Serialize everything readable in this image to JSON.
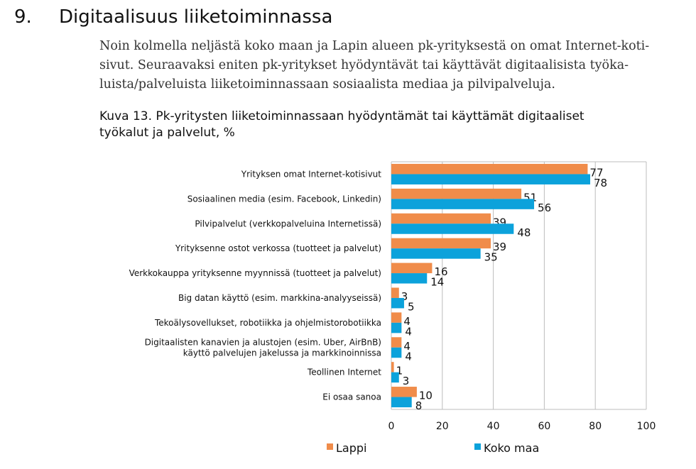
{
  "section": {
    "number": "9.",
    "title": "Digitaalisuus liiketoiminnassa"
  },
  "paragraph_lines": [
    "Noin kolmella neljästä koko maan ja Lapin alueen pk-yrityksestä on omat Internet-koti-",
    "sivut. Seuraavaksi eniten pk-yritykset hyödyntävät tai käyttävät digitaalisista työka-",
    "luista/palveluista liiketoiminnassaan sosiaalista mediaa ja pilvipalveluja."
  ],
  "caption_lines": [
    "Kuva 13. Pk-yritysten liiketoiminnassaan hyödyntämät tai käyttämät digitaaliset",
    "työkalut ja palvelut, %"
  ],
  "chart_data": {
    "type": "bar",
    "orientation": "horizontal",
    "title": "Kuva 13. Pk-yritysten liiketoiminnassaan hyödyntämät tai käyttämät digitaaliset työkalut ja palvelut, %",
    "xlabel": "",
    "ylabel": "",
    "xlim": [
      0,
      100
    ],
    "xticks": [
      0,
      20,
      40,
      60,
      80,
      100
    ],
    "grid": true,
    "legend_position": "bottom",
    "categories": [
      [
        "Yrityksen omat Internet-kotisivut"
      ],
      [
        "Sosiaalinen media (esim. Facebook, Linkedin)"
      ],
      [
        "Pilvipalvelut  (verkkopalveluina Internetissä)"
      ],
      [
        "Yrityksenne ostot verkossa (tuotteet ja palvelut)"
      ],
      [
        "Verkkokauppa yrityksenne myynnissä (tuotteet ja palvelut)"
      ],
      [
        "Big datan käyttö (esim. markkina-analyyseissä)"
      ],
      [
        "Tekoälysovellukset, robotiikka ja ohjelmistorobotiikka"
      ],
      [
        "Digitaalisten kanavien ja alustojen (esim. Uber, AirBnB)",
        "käyttö palvelujen jakelussa ja markkinoinnissa"
      ],
      [
        "Teollinen Internet"
      ],
      [
        "Ei osaa sanoa"
      ]
    ],
    "series": [
      {
        "name": "Lappi",
        "color": "#F08C4A",
        "values": [
          77,
          51,
          39,
          39,
          16,
          3,
          4,
          4,
          1,
          10
        ]
      },
      {
        "name": "Koko maa",
        "color": "#0CA2DB",
        "values": [
          78,
          56,
          48,
          35,
          14,
          5,
          4,
          4,
          3,
          8
        ]
      }
    ]
  }
}
